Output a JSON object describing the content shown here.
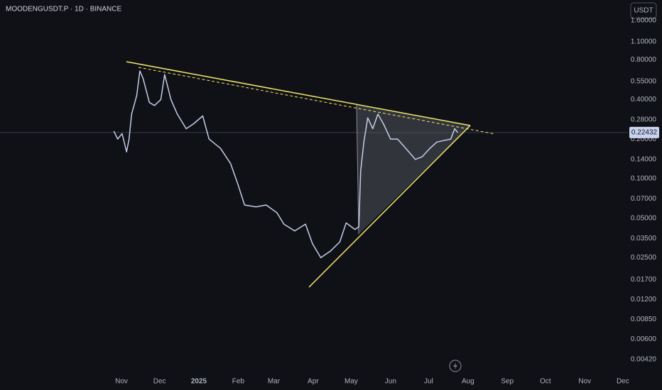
{
  "chart_data": {
    "type": "line",
    "title": "MOODENGUSDT.P · 1D · BINANCE",
    "currency_button": "USDT",
    "log_scale": true,
    "grid": false,
    "current_price": {
      "value": 0.22432,
      "label": "0.22432"
    },
    "xlim": [
      -95.7,
      399
    ],
    "xticks": [
      {
        "value": 0,
        "label": "Nov"
      },
      {
        "value": 30,
        "label": "Dec"
      },
      {
        "value": 61,
        "label": "2025"
      },
      {
        "value": 92,
        "label": "Feb"
      },
      {
        "value": 120,
        "label": "Mar"
      },
      {
        "value": 151,
        "label": "Apr"
      },
      {
        "value": 181,
        "label": "May"
      },
      {
        "value": 212,
        "label": "Jun"
      },
      {
        "value": 242,
        "label": "Jul"
      },
      {
        "value": 273,
        "label": "Aug"
      },
      {
        "value": 304,
        "label": "Sep"
      },
      {
        "value": 334,
        "label": "Oct"
      },
      {
        "value": 365,
        "label": "Nov"
      },
      {
        "value": 395,
        "label": "Dec"
      }
    ],
    "ylim": [
      0.00357,
      2.29
    ],
    "yticks": [
      {
        "value": 1.6,
        "label": "1.60000"
      },
      {
        "value": 1.1,
        "label": "1.10000"
      },
      {
        "value": 0.8,
        "label": "0.80000"
      },
      {
        "value": 0.55,
        "label": "0.55000"
      },
      {
        "value": 0.4,
        "label": "0.40000"
      },
      {
        "value": 0.28,
        "label": "0.28000"
      },
      {
        "value": 0.2,
        "label": "0.20000"
      },
      {
        "value": 0.14,
        "label": "0.14000"
      },
      {
        "value": 0.1,
        "label": "0.10000"
      },
      {
        "value": 0.07,
        "label": "0.07000"
      },
      {
        "value": 0.05,
        "label": "0.05000"
      },
      {
        "value": 0.035,
        "label": "0.03500"
      },
      {
        "value": 0.025,
        "label": "0.02500"
      },
      {
        "value": 0.017,
        "label": "0.01700"
      },
      {
        "value": 0.012,
        "label": "0.01200"
      },
      {
        "value": 0.0085,
        "label": "0.00850"
      },
      {
        "value": 0.006,
        "label": "0.00600"
      },
      {
        "value": 0.0042,
        "label": "0.00420"
      }
    ],
    "series": [
      {
        "color": "#c5cde6",
        "x": [
          -6,
          -3,
          0.5,
          4,
          6,
          8,
          12,
          14.5,
          17,
          22,
          26,
          31,
          34,
          39,
          44,
          51,
          56.5,
          64,
          69,
          78,
          86,
          92,
          97,
          106,
          114,
          122.5,
          128,
          136.5,
          145,
          150.5,
          157,
          164.5,
          172,
          177,
          184,
          187,
          188.5,
          191,
          194,
          198,
          202,
          206.5,
          212,
          217.5,
          224,
          231.5,
          237,
          243,
          248.5,
          254,
          259.5,
          262.5,
          265
        ],
        "values": [
          0.23,
          0.2,
          0.22,
          0.16,
          0.2,
          0.31,
          0.43,
          0.66,
          0.58,
          0.38,
          0.36,
          0.4,
          0.62,
          0.4,
          0.31,
          0.24,
          0.26,
          0.3,
          0.2,
          0.17,
          0.13,
          0.089,
          0.063,
          0.061,
          0.063,
          0.055,
          0.045,
          0.04,
          0.045,
          0.032,
          0.025,
          0.028,
          0.033,
          0.046,
          0.041,
          0.043,
          0.115,
          0.19,
          0.29,
          0.24,
          0.31,
          0.26,
          0.2,
          0.2,
          0.17,
          0.14,
          0.147,
          0.17,
          0.19,
          0.195,
          0.2,
          0.24,
          0.22432
        ]
      }
    ]
  }
}
